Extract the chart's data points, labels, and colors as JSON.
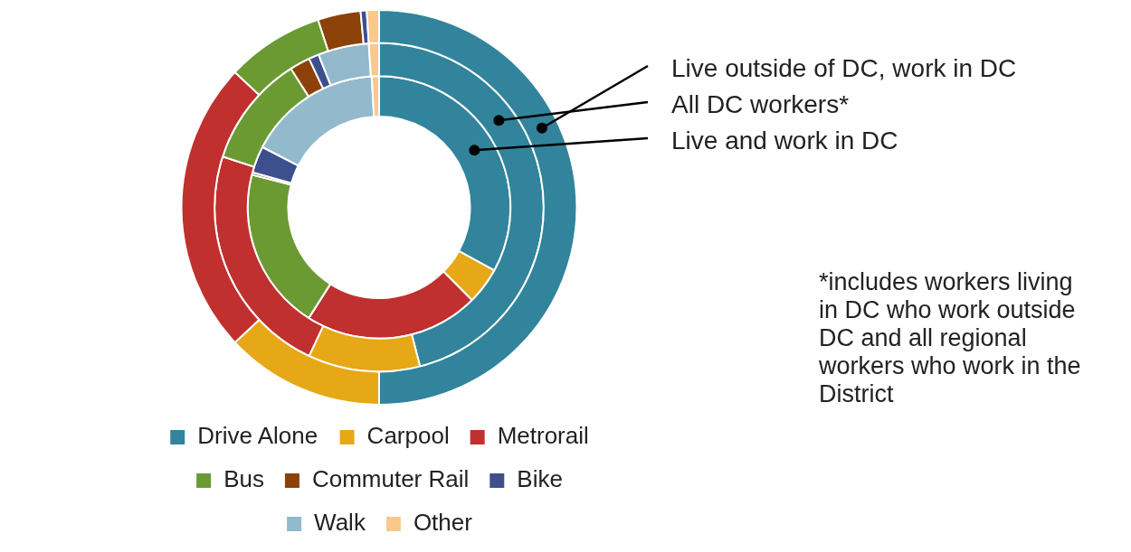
{
  "chart_data": {
    "type": "donut",
    "categories": [
      "Drive Alone",
      "Carpool",
      "Metrorail",
      "Bus",
      "Commuter Rail",
      "Bike",
      "Walk",
      "Other"
    ],
    "colors": [
      "#31849b",
      "#e6a817",
      "#c0302f",
      "#6b9a33",
      "#8b4108",
      "#3d4f8c",
      "#93b9cc",
      "#f9c98b"
    ],
    "series": [
      {
        "name": "Live outside of DC, work in DC",
        "values": [
          50,
          13,
          24,
          8,
          3.5,
          0.5,
          0,
          1
        ]
      },
      {
        "name": "All DC workers*",
        "values": [
          46,
          11,
          23,
          11,
          2,
          1,
          5,
          1
        ]
      },
      {
        "name": "Live and work in DC",
        "values": [
          33,
          4.5,
          21.5,
          20,
          0.3,
          3.3,
          16.5,
          0.9
        ]
      }
    ],
    "annotations": [
      "*includes workers living in DC who work outside DC and all regional workers who work in the District"
    ],
    "legend": "bottom"
  }
}
